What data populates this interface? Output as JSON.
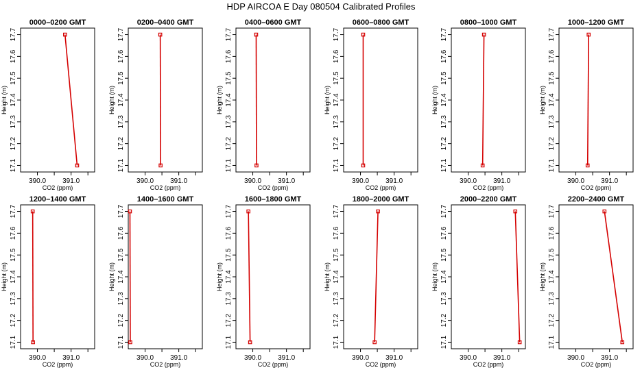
{
  "title": "HDP AIRCOA E  Day 080504  Calibrated Profiles",
  "colors": {
    "line": "#d40000",
    "axis": "#000000",
    "background": "#ffffff"
  },
  "chart_data": [
    {
      "type": "line",
      "title": "0000–0200 GMT",
      "xlabel": "CO2 (ppm)",
      "ylabel": "Height (m)",
      "xlim": [
        389.5,
        391.7
      ],
      "ylim": [
        17.07,
        17.73
      ],
      "xticks": [
        "390.0",
        "391.0"
      ],
      "xtick_values": [
        390.0,
        391.0
      ],
      "yticks": [
        "17.1",
        "17.2",
        "17.3",
        "17.4",
        "17.5",
        "17.6",
        "17.7"
      ],
      "grid": false,
      "series": [
        {
          "points": [
            {
              "co2": 390.82,
              "height": 17.7
            },
            {
              "co2": 391.18,
              "height": 17.1
            }
          ]
        }
      ]
    },
    {
      "type": "line",
      "title": "0200–0400 GMT",
      "xlabel": "CO2 (ppm)",
      "ylabel": "Height (m)",
      "xlim": [
        389.5,
        391.7
      ],
      "ylim": [
        17.07,
        17.73
      ],
      "xticks": [
        "390.0",
        "391.0"
      ],
      "xtick_values": [
        390.0,
        391.0
      ],
      "yticks": [
        "17.1",
        "17.2",
        "17.3",
        "17.4",
        "17.5",
        "17.6",
        "17.7"
      ],
      "grid": false,
      "series": [
        {
          "points": [
            {
              "co2": 390.45,
              "height": 17.7
            },
            {
              "co2": 390.46,
              "height": 17.1
            }
          ]
        }
      ]
    },
    {
      "type": "line",
      "title": "0400–0600 GMT",
      "xlabel": "CO2 (ppm)",
      "ylabel": "Height (m)",
      "xlim": [
        389.5,
        391.7
      ],
      "ylim": [
        17.07,
        17.73
      ],
      "xticks": [
        "390.0",
        "391.0"
      ],
      "xtick_values": [
        390.0,
        391.0
      ],
      "yticks": [
        "17.1",
        "17.2",
        "17.3",
        "17.4",
        "17.5",
        "17.6",
        "17.7"
      ],
      "grid": false,
      "series": [
        {
          "points": [
            {
              "co2": 390.1,
              "height": 17.7
            },
            {
              "co2": 390.11,
              "height": 17.1
            }
          ]
        }
      ]
    },
    {
      "type": "line",
      "title": "0600–0800 GMT",
      "xlabel": "CO2 (ppm)",
      "ylabel": "Height (m)",
      "xlim": [
        389.5,
        391.7
      ],
      "ylim": [
        17.07,
        17.73
      ],
      "xticks": [
        "390.0",
        "391.0"
      ],
      "xtick_values": [
        390.0,
        391.0
      ],
      "yticks": [
        "17.1",
        "17.2",
        "17.3",
        "17.4",
        "17.5",
        "17.6",
        "17.7"
      ],
      "grid": false,
      "series": [
        {
          "points": [
            {
              "co2": 390.08,
              "height": 17.7
            },
            {
              "co2": 390.08,
              "height": 17.1
            }
          ]
        }
      ]
    },
    {
      "type": "line",
      "title": "0800–1000 GMT",
      "xlabel": "CO2 (ppm)",
      "ylabel": "Height (m)",
      "xlim": [
        389.5,
        391.7
      ],
      "ylim": [
        17.07,
        17.73
      ],
      "xticks": [
        "390.0",
        "391.0"
      ],
      "xtick_values": [
        390.0,
        391.0
      ],
      "yticks": [
        "17.1",
        "17.2",
        "17.3",
        "17.4",
        "17.5",
        "17.6",
        "17.7"
      ],
      "grid": false,
      "series": [
        {
          "points": [
            {
              "co2": 390.47,
              "height": 17.7
            },
            {
              "co2": 390.43,
              "height": 17.1
            }
          ]
        }
      ]
    },
    {
      "type": "line",
      "title": "1000–1200 GMT",
      "xlabel": "CO2 (ppm)",
      "ylabel": "Height (m)",
      "xlim": [
        389.5,
        391.7
      ],
      "ylim": [
        17.07,
        17.73
      ],
      "xticks": [
        "390.0",
        "391.0"
      ],
      "xtick_values": [
        390.0,
        391.0
      ],
      "yticks": [
        "17.1",
        "17.2",
        "17.3",
        "17.4",
        "17.5",
        "17.6",
        "17.7"
      ],
      "grid": false,
      "series": [
        {
          "points": [
            {
              "co2": 390.38,
              "height": 17.7
            },
            {
              "co2": 390.35,
              "height": 17.1
            }
          ]
        }
      ]
    },
    {
      "type": "line",
      "title": "1200–1400 GMT",
      "xlabel": "CO2 (ppm)",
      "ylabel": "Height (m)",
      "xlim": [
        389.5,
        391.7
      ],
      "ylim": [
        17.07,
        17.73
      ],
      "xticks": [
        "390.0",
        "391.0"
      ],
      "xtick_values": [
        390.0,
        391.0
      ],
      "yticks": [
        "17.1",
        "17.2",
        "17.3",
        "17.4",
        "17.5",
        "17.6",
        "17.7"
      ],
      "grid": false,
      "series": [
        {
          "points": [
            {
              "co2": 389.86,
              "height": 17.7
            },
            {
              "co2": 389.87,
              "height": 17.1
            }
          ]
        }
      ]
    },
    {
      "type": "line",
      "title": "1400–1600 GMT",
      "xlabel": "CO2 (ppm)",
      "ylabel": "Height (m)",
      "xlim": [
        389.5,
        391.7
      ],
      "ylim": [
        17.07,
        17.73
      ],
      "xticks": [
        "390.0",
        "391.0"
      ],
      "xtick_values": [
        390.0,
        391.0
      ],
      "yticks": [
        "17.1",
        "17.2",
        "17.3",
        "17.4",
        "17.5",
        "17.6",
        "17.7"
      ],
      "grid": false,
      "series": [
        {
          "points": [
            {
              "co2": 389.55,
              "height": 17.7
            },
            {
              "co2": 389.56,
              "height": 17.1
            }
          ]
        }
      ]
    },
    {
      "type": "line",
      "title": "1600–1800 GMT",
      "xlabel": "CO2 (ppm)",
      "ylabel": "Height (m)",
      "xlim": [
        389.5,
        391.7
      ],
      "ylim": [
        17.07,
        17.73
      ],
      "xticks": [
        "390.0",
        "391.0"
      ],
      "xtick_values": [
        390.0,
        391.0
      ],
      "yticks": [
        "17.1",
        "17.2",
        "17.3",
        "17.4",
        "17.5",
        "17.6",
        "17.7"
      ],
      "grid": false,
      "series": [
        {
          "points": [
            {
              "co2": 389.87,
              "height": 17.7
            },
            {
              "co2": 389.92,
              "height": 17.1
            }
          ]
        }
      ]
    },
    {
      "type": "line",
      "title": "1800–2000 GMT",
      "xlabel": "CO2 (ppm)",
      "ylabel": "Height (m)",
      "xlim": [
        389.5,
        391.7
      ],
      "ylim": [
        17.07,
        17.73
      ],
      "xticks": [
        "390.0",
        "391.0"
      ],
      "xtick_values": [
        390.0,
        391.0
      ],
      "yticks": [
        "17.1",
        "17.2",
        "17.3",
        "17.4",
        "17.5",
        "17.6",
        "17.7"
      ],
      "grid": false,
      "series": [
        {
          "points": [
            {
              "co2": 390.52,
              "height": 17.7
            },
            {
              "co2": 390.42,
              "height": 17.1
            }
          ]
        }
      ]
    },
    {
      "type": "line",
      "title": "2000–2200 GMT",
      "xlabel": "CO2 (ppm)",
      "ylabel": "Height (m)",
      "xlim": [
        389.5,
        391.7
      ],
      "ylim": [
        17.07,
        17.73
      ],
      "xticks": [
        "390.0",
        "391.0"
      ],
      "xtick_values": [
        390.0,
        391.0
      ],
      "yticks": [
        "17.1",
        "17.2",
        "17.3",
        "17.4",
        "17.5",
        "17.6",
        "17.7"
      ],
      "grid": false,
      "series": [
        {
          "points": [
            {
              "co2": 391.4,
              "height": 17.7
            },
            {
              "co2": 391.53,
              "height": 17.1
            }
          ]
        }
      ]
    },
    {
      "type": "line",
      "title": "2200–2400 GMT",
      "xlabel": "CO2 (ppm)",
      "ylabel": "Height (m)",
      "xlim": [
        389.5,
        391.7
      ],
      "ylim": [
        17.07,
        17.73
      ],
      "xticks": [
        "390.0",
        "391.0"
      ],
      "xtick_values": [
        390.0,
        391.0
      ],
      "yticks": [
        "17.1",
        "17.2",
        "17.3",
        "17.4",
        "17.5",
        "17.6",
        "17.7"
      ],
      "grid": false,
      "series": [
        {
          "points": [
            {
              "co2": 390.85,
              "height": 17.7
            },
            {
              "co2": 391.38,
              "height": 17.1
            }
          ]
        }
      ]
    }
  ]
}
